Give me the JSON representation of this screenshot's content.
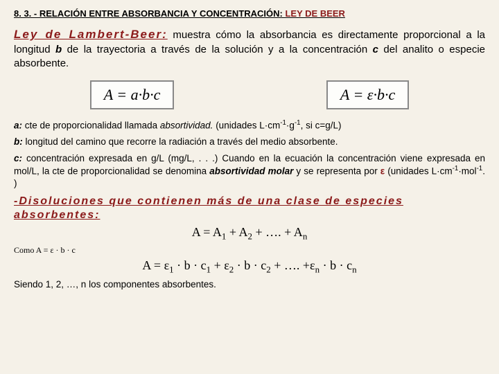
{
  "header": {
    "prefix": "8. 3. - RELACIÓN ENTRE ABSORBANCIA Y CONCENTRACIÓN: ",
    "accent": "LEY DE BEER"
  },
  "law": {
    "title": "Ley de Lambert-Beer:",
    "body_pre": " muestra cómo la absorbancia es directamente proporcional a la longitud ",
    "b": "b",
    "body_mid": " de la trayectoria a través de la solución y a la concentración ",
    "c": "c",
    "body_post": " del analito o especie absorbente."
  },
  "formulas": {
    "f1": "A = a·b·c",
    "f2": "A = ε·b·c"
  },
  "defs": {
    "a": {
      "label": "a:",
      "text_pre": " cte de proporcionalidad llamada ",
      "ital": "absortividad.",
      "text_post": " (unidades L·cm",
      "sup1": "-1",
      "mid": "·g",
      "sup2": "-1",
      "tail": ", si c=g/L)"
    },
    "b": {
      "label": "b:",
      "text": " longitud del camino que recorre la radiación a través del medio absorbente."
    },
    "c": {
      "label": "c:",
      "text_pre": " concentración expresada en g/L (mg/L, . . .) Cuando en la ecuación la concentración viene expresada en mol/L, la cte de proporcionalidad se denomina ",
      "ital": "absortividad molar",
      "text_mid": " y se representa por ",
      "eps": "ε",
      "text_post": " (unidades L·cm",
      "sup1": "-1",
      "dot": "·mol",
      "sup2": "-1",
      "tail": ". )"
    }
  },
  "dis": {
    "line1": "-Disoluciones que contienen más de una clase de especies",
    "line2": "absorbentes:"
  },
  "eq1": {
    "lhs": "A = A",
    "s1": "1",
    "p1": " + A",
    "s2": "2",
    "p2": " + …. + A",
    "sn": "n"
  },
  "note": "Como A = ε · b · c",
  "eq2": {
    "lhs": "A = ε",
    "s1": "1",
    "p1": " · b · c",
    "s1b": "1",
    "p2": " + ε",
    "s2": "2",
    "p3": " · b · c",
    "s2b": "2",
    "p4": " + …. +ε",
    "sn": "n",
    "p5": " · b · c",
    "snb": "n"
  },
  "closing": "Siendo 1, 2, …, n los componentes absorbentes."
}
